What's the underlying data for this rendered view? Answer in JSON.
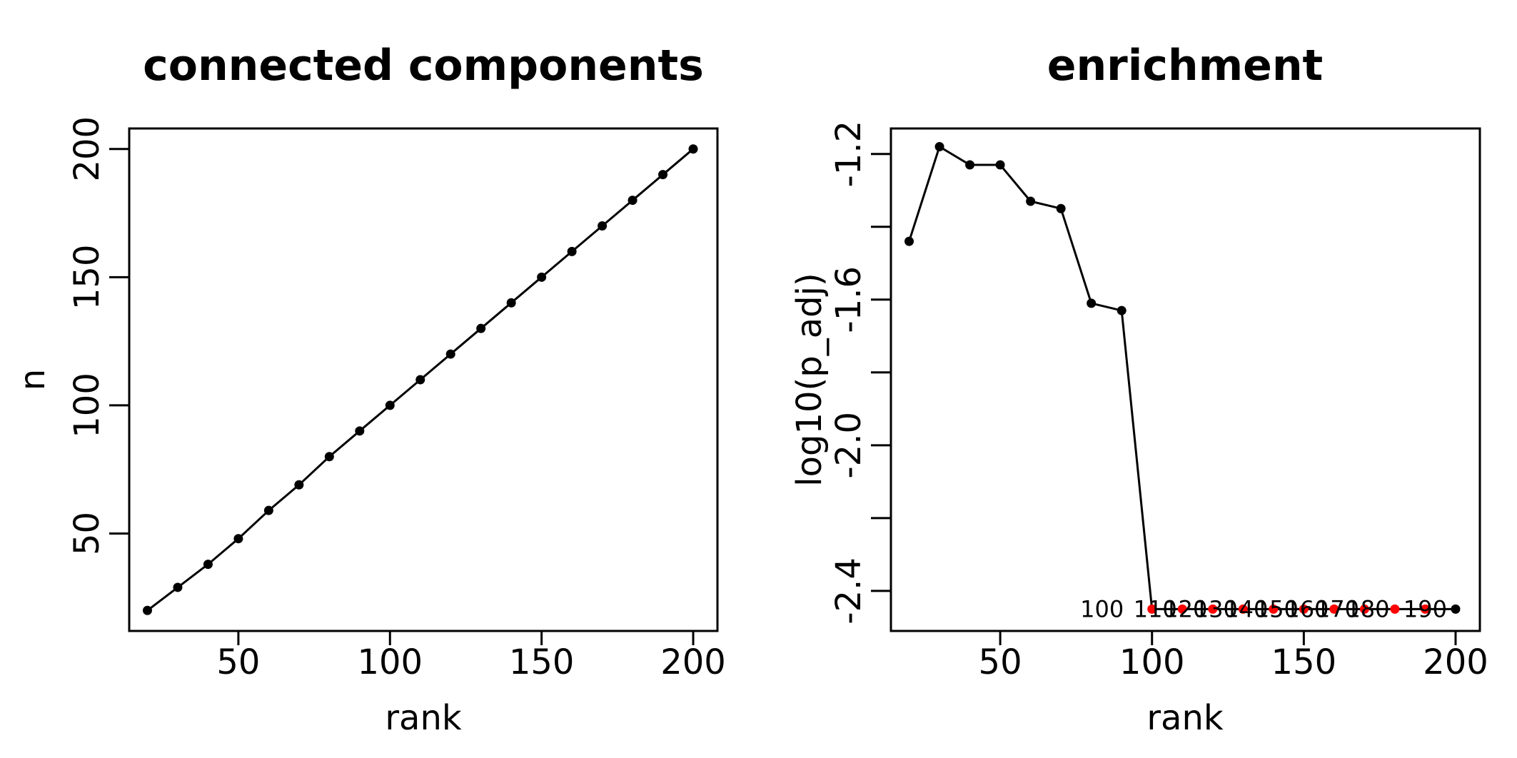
{
  "chart_data": [
    {
      "type": "line",
      "title": "connected components",
      "xlabel": "rank",
      "ylabel": "n",
      "xlim": [
        14,
        208
      ],
      "ylim": [
        12,
        208
      ],
      "xticks": [
        "50",
        "100",
        "150",
        "200"
      ],
      "yticks": [
        "50",
        "100",
        "150",
        "200"
      ],
      "grid": false,
      "legend": "none",
      "series": [
        {
          "x": [
            20,
            30,
            40,
            50,
            60,
            70,
            80,
            90,
            100,
            110,
            120,
            130,
            140,
            150,
            160,
            170,
            180,
            190,
            200
          ],
          "y": [
            20,
            29,
            38,
            48,
            59,
            69,
            80,
            90,
            100,
            110,
            120,
            130,
            140,
            150,
            160,
            170,
            180,
            190,
            200
          ]
        }
      ]
    },
    {
      "type": "line",
      "title": "enrichment",
      "xlabel": "rank",
      "ylabel": "log10(p_adj)",
      "xlim": [
        14,
        208
      ],
      "ylim": [
        -2.51,
        -1.13
      ],
      "xticks": [
        "50",
        "100",
        "150",
        "200"
      ],
      "yticks": [
        "-1.2",
        "-1.6",
        "-2.0",
        "-2.4"
      ],
      "grid": false,
      "legend": "none",
      "series": [
        {
          "x": [
            20,
            30,
            40,
            50,
            60,
            70,
            80,
            90,
            100,
            110,
            120,
            130,
            140,
            150,
            160,
            170,
            180,
            190,
            200
          ],
          "y": [
            -1.44,
            -1.18,
            -1.23,
            -1.23,
            -1.33,
            -1.35,
            -1.61,
            -1.63,
            -2.45,
            -2.45,
            -2.45,
            -2.45,
            -2.45,
            -2.45,
            -2.45,
            -2.45,
            -2.45,
            -2.45,
            -2.45
          ],
          "point_colors": [
            "#000000",
            "#000000",
            "#000000",
            "#000000",
            "#000000",
            "#000000",
            "#000000",
            "#000000",
            "#ff0000",
            "#ff0000",
            "#ff0000",
            "#ff0000",
            "#ff0000",
            "#ff0000",
            "#ff0000",
            "#ff0000",
            "#ff0000",
            "#ff0000",
            "#000000"
          ]
        }
      ],
      "point_labels": [
        {
          "text": "100",
          "x": 100,
          "y": -2.45
        },
        {
          "text": "110",
          "x": 110,
          "y": -2.45
        },
        {
          "text": "140",
          "x": 140,
          "y": -2.45
        },
        {
          "text": "120",
          "x": 120,
          "y": -2.45
        },
        {
          "text": "130",
          "x": 130,
          "y": -2.45
        },
        {
          "text": "180",
          "x": 180,
          "y": -2.45
        },
        {
          "text": "150",
          "x": 150,
          "y": -2.45
        },
        {
          "text": "160",
          "x": 160,
          "y": -2.45
        },
        {
          "text": "170",
          "x": 170,
          "y": -2.45
        },
        {
          "text": "190",
          "x": 190,
          "y": -2.45
        }
      ]
    }
  ]
}
